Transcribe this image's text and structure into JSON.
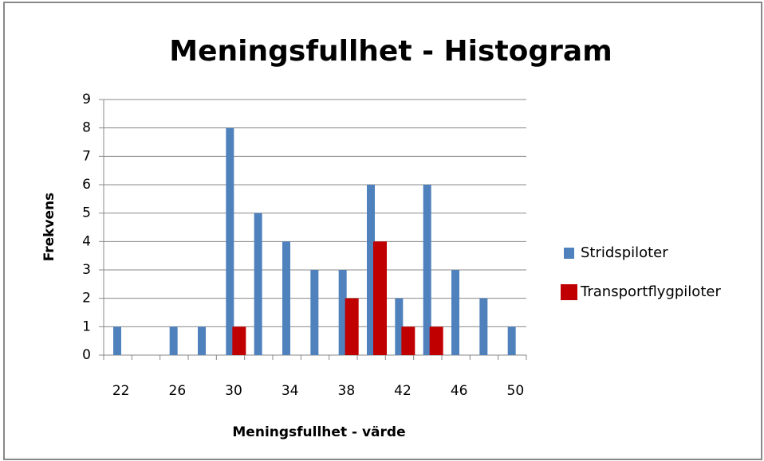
{
  "chart_data": {
    "type": "bar",
    "title": "Meningsfullhet - Histogram",
    "xlabel": "Meningsfullhet - värde",
    "ylabel": "Frekvens",
    "categories": [
      "22",
      null,
      "26",
      null,
      "30",
      null,
      "34",
      null,
      "38",
      null,
      "42",
      null,
      "46",
      null,
      "50"
    ],
    "series": [
      {
        "name": "Stridspiloter",
        "color": "#4f81bd",
        "values": [
          1,
          0,
          1,
          1,
          8,
          5,
          4,
          3,
          3,
          6,
          2,
          6,
          3,
          2,
          1
        ]
      },
      {
        "name": "Transportflygpiloter",
        "color": "#c00000",
        "values": [
          0,
          0,
          0,
          0,
          1,
          0,
          0,
          0,
          2,
          4,
          1,
          1,
          0,
          0,
          0
        ]
      }
    ],
    "ylim": [
      0,
      9
    ],
    "yticks": [
      0,
      1,
      2,
      3,
      4,
      5,
      6,
      7,
      8,
      9
    ],
    "grid": true,
    "legend": "right"
  }
}
